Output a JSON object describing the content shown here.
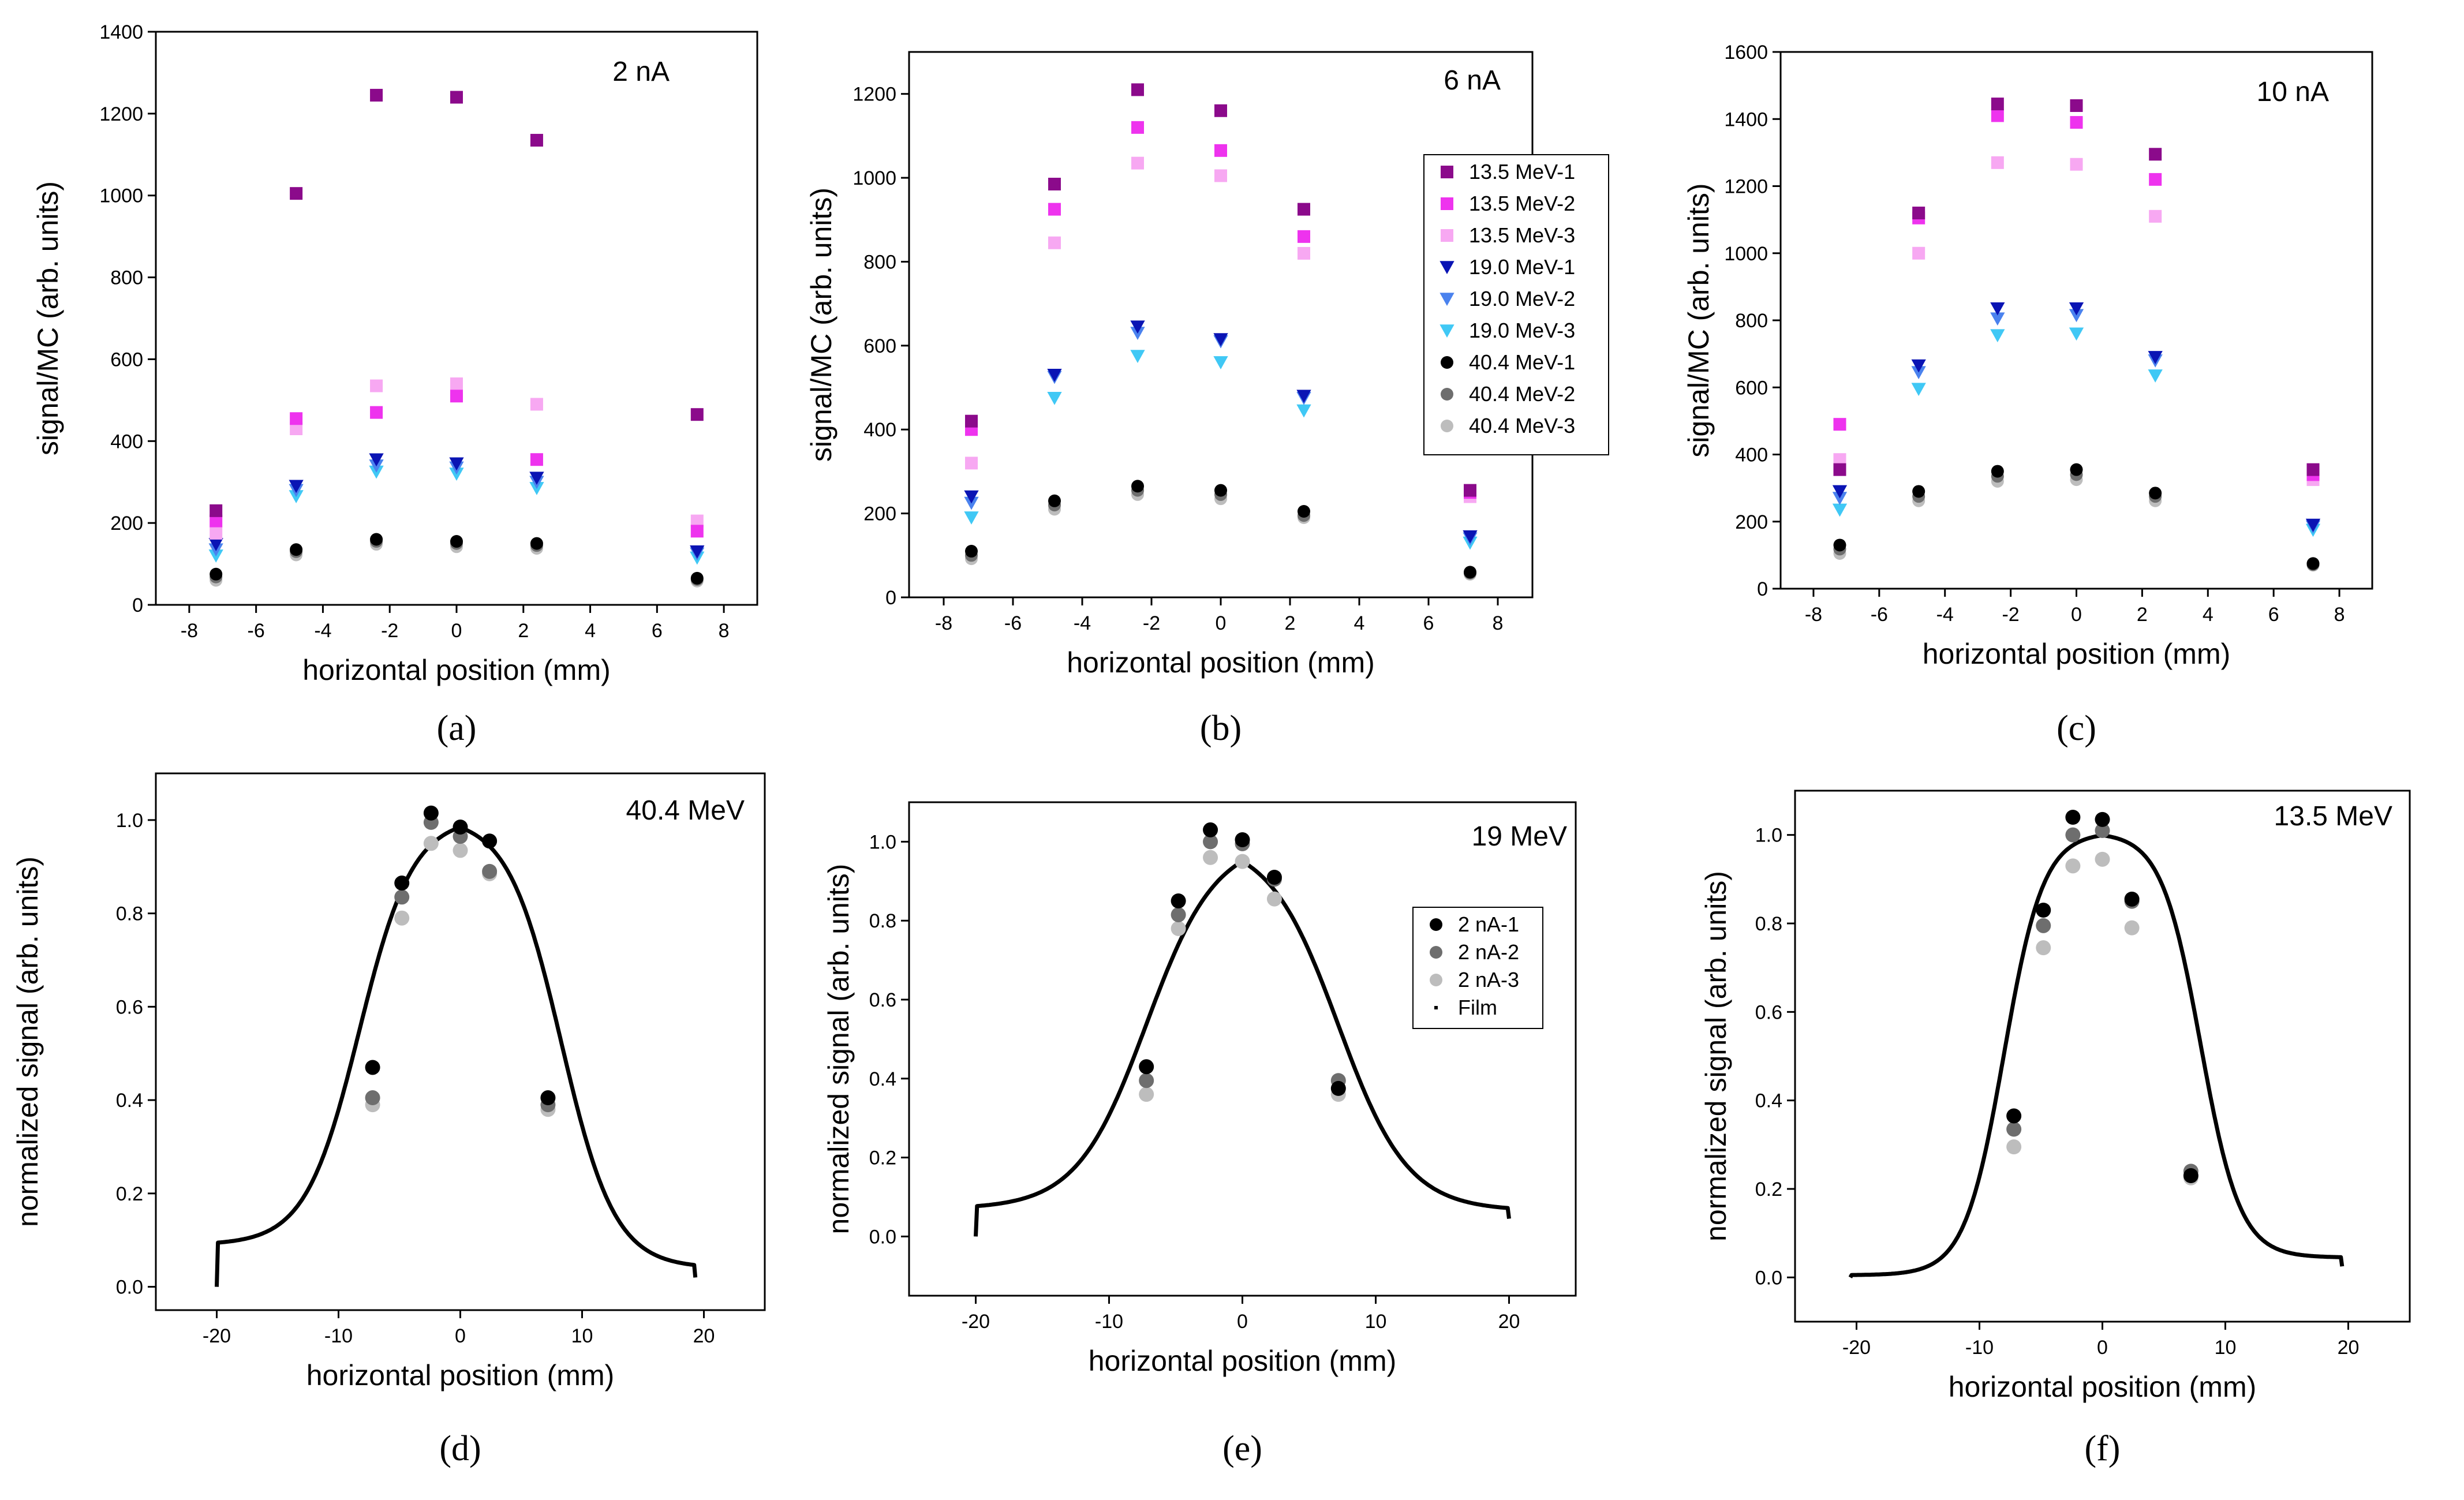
{
  "colors": {
    "13.5 MeV-1": "#8b0a8b",
    "13.5 MeV-2": "#ee33ee",
    "13.5 MeV-3": "#f7a8f2",
    "19.0 MeV-1": "#0a14b4",
    "19.0 MeV-2": "#4a82ee",
    "19.0 MeV-3": "#40c8f5",
    "40.4 MeV-1": "#000000",
    "40.4 MeV-2": "#6e6e6e",
    "40.4 MeV-3": "#bdbdbd",
    "2 nA-1": "#000000",
    "2 nA-2": "#6e6e6e",
    "2 nA-3": "#bdbdbd",
    "Film": "#000000"
  },
  "chart_data": [
    {
      "type": "scatter",
      "panel_label": "(a)",
      "annotation": "2 nA",
      "xlabel": "horizontal position (mm)",
      "ylabel": "signal/MC (arb. units)",
      "xlim": [
        -9,
        9
      ],
      "ylim": [
        0,
        1400
      ],
      "xticks": [
        -8,
        -6,
        -4,
        -2,
        0,
        2,
        4,
        6,
        8
      ],
      "xtick_labels": [
        "-8",
        "-6",
        "-4",
        "-2",
        "0",
        "2",
        "4",
        "6",
        "8"
      ],
      "yticks": [
        0,
        200,
        400,
        600,
        800,
        1000,
        1200,
        1400
      ],
      "ytick_labels": [
        "0",
        "200",
        "400",
        "600",
        "800",
        "1000",
        "1200",
        "1400"
      ],
      "x": [
        -7.2,
        -4.8,
        -2.4,
        0,
        2.4,
        7.2
      ],
      "series": [
        {
          "name": "13.5 MeV-1",
          "marker": "square",
          "values": [
            230,
            1005,
            1245,
            1240,
            1135,
            465
          ]
        },
        {
          "name": "13.5 MeV-2",
          "marker": "square",
          "values": [
            205,
            455,
            470,
            510,
            355,
            180
          ]
        },
        {
          "name": "13.5 MeV-3",
          "marker": "square",
          "values": [
            175,
            430,
            535,
            540,
            490,
            205
          ]
        },
        {
          "name": "19.0 MeV-1",
          "marker": "triangle",
          "values": [
            148,
            290,
            355,
            345,
            310,
            130
          ]
        },
        {
          "name": "19.0 MeV-2",
          "marker": "triangle",
          "values": [
            135,
            280,
            340,
            335,
            300,
            125
          ]
        },
        {
          "name": "19.0 MeV-3",
          "marker": "triangle",
          "values": [
            120,
            265,
            325,
            320,
            285,
            115
          ]
        },
        {
          "name": "40.4 MeV-1",
          "marker": "circle",
          "values": [
            75,
            135,
            160,
            155,
            150,
            65
          ]
        },
        {
          "name": "40.4 MeV-2",
          "marker": "circle",
          "values": [
            68,
            130,
            155,
            150,
            145,
            62
          ]
        },
        {
          "name": "40.4 MeV-3",
          "marker": "circle",
          "values": [
            60,
            122,
            148,
            142,
            138,
            58
          ]
        }
      ]
    },
    {
      "type": "scatter",
      "panel_label": "(b)",
      "annotation": "6 nA",
      "xlabel": "horizontal position (mm)",
      "ylabel": "signal/MC (arb. units)",
      "xlim": [
        -9,
        9
      ],
      "ylim": [
        0,
        1300
      ],
      "xticks": [
        -8,
        -6,
        -4,
        -2,
        0,
        2,
        4,
        6,
        8
      ],
      "xtick_labels": [
        "-8",
        "-6",
        "-4",
        "-2",
        "0",
        "2",
        "4",
        "6",
        "8"
      ],
      "yticks": [
        0,
        200,
        400,
        600,
        800,
        1000,
        1200
      ],
      "ytick_labels": [
        "0",
        "200",
        "400",
        "600",
        "800",
        "1000",
        "1200"
      ],
      "x": [
        -7.2,
        -4.8,
        -2.4,
        0,
        2.4,
        7.2
      ],
      "series": [
        {
          "name": "13.5 MeV-1",
          "marker": "square",
          "values": [
            420,
            985,
            1210,
            1160,
            925,
            255
          ]
        },
        {
          "name": "13.5 MeV-2",
          "marker": "square",
          "values": [
            400,
            925,
            1120,
            1065,
            860,
            250
          ]
        },
        {
          "name": "13.5 MeV-3",
          "marker": "square",
          "values": [
            320,
            845,
            1035,
            1005,
            820,
            240
          ]
        },
        {
          "name": "19.0 MeV-1",
          "marker": "triangle",
          "values": [
            240,
            530,
            645,
            615,
            480,
            145
          ]
        },
        {
          "name": "19.0 MeV-2",
          "marker": "triangle",
          "values": [
            225,
            525,
            630,
            610,
            475,
            140
          ]
        },
        {
          "name": "19.0 MeV-3",
          "marker": "triangle",
          "values": [
            190,
            475,
            575,
            560,
            445,
            130
          ]
        },
        {
          "name": "40.4 MeV-1",
          "marker": "circle",
          "values": [
            110,
            230,
            265,
            255,
            205,
            60
          ]
        },
        {
          "name": "40.4 MeV-2",
          "marker": "circle",
          "values": [
            100,
            220,
            255,
            245,
            195,
            58
          ]
        },
        {
          "name": "40.4 MeV-3",
          "marker": "circle",
          "values": [
            92,
            210,
            245,
            235,
            190,
            55
          ]
        }
      ],
      "legend": [
        "13.5 MeV-1",
        "13.5 MeV-2",
        "13.5 MeV-3",
        "19.0 MeV-1",
        "19.0 MeV-2",
        "19.0 MeV-3",
        "40.4 MeV-1",
        "40.4 MeV-2",
        "40.4 MeV-3"
      ],
      "legend_position": "right"
    },
    {
      "type": "scatter",
      "panel_label": "(c)",
      "annotation": "10 nA",
      "xlabel": "horizontal position (mm)",
      "ylabel": "signal/MC (arb. units)",
      "xlim": [
        -9,
        9
      ],
      "ylim": [
        0,
        1600
      ],
      "xticks": [
        -8,
        -6,
        -4,
        -2,
        0,
        2,
        4,
        6,
        8
      ],
      "xtick_labels": [
        "-8",
        "-6",
        "-4",
        "-2",
        "0",
        "2",
        "4",
        "6",
        "8"
      ],
      "yticks": [
        0,
        200,
        400,
        600,
        800,
        1000,
        1200,
        1400,
        1600
      ],
      "ytick_labels": [
        "0",
        "200",
        "400",
        "600",
        "800",
        "1000",
        "1200",
        "1400",
        "1600"
      ],
      "x": [
        -7.2,
        -4.8,
        -2.4,
        0,
        2.4,
        7.2
      ],
      "series": [
        {
          "name": "13.5 MeV-1",
          "marker": "square",
          "values": [
            355,
            1120,
            1445,
            1440,
            1295,
            355
          ]
        },
        {
          "name": "13.5 MeV-2",
          "marker": "square",
          "values": [
            490,
            1105,
            1410,
            1390,
            1220,
            340
          ]
        },
        {
          "name": "13.5 MeV-3",
          "marker": "square",
          "values": [
            385,
            1000,
            1270,
            1265,
            1110,
            325
          ]
        },
        {
          "name": "19.0 MeV-1",
          "marker": "triangle",
          "values": [
            290,
            665,
            835,
            835,
            690,
            190
          ]
        },
        {
          "name": "19.0 MeV-2",
          "marker": "triangle",
          "values": [
            270,
            645,
            805,
            815,
            680,
            185
          ]
        },
        {
          "name": "19.0 MeV-3",
          "marker": "triangle",
          "values": [
            235,
            595,
            755,
            760,
            635,
            175
          ]
        },
        {
          "name": "40.4 MeV-1",
          "marker": "circle",
          "values": [
            130,
            290,
            350,
            355,
            285,
            75
          ]
        },
        {
          "name": "40.4 MeV-2",
          "marker": "circle",
          "values": [
            118,
            275,
            335,
            340,
            275,
            72
          ]
        },
        {
          "name": "40.4 MeV-3",
          "marker": "circle",
          "values": [
            105,
            262,
            320,
            325,
            262,
            70
          ]
        }
      ]
    },
    {
      "type": "scatter",
      "panel_label": "(d)",
      "annotation": "40.4 MeV",
      "xlabel": "horizontal position (mm)",
      "ylabel": "normalized signal (arb. units)",
      "xlim": [
        -25,
        25
      ],
      "ylim": [
        -0.05,
        1.1
      ],
      "xticks": [
        -20,
        -10,
        0,
        10,
        20
      ],
      "xtick_labels": [
        "-20",
        "-10",
        "0",
        "10",
        "20"
      ],
      "yticks": [
        0,
        0.2,
        0.4,
        0.6,
        0.8,
        1.0
      ],
      "ytick_labels": [
        "0.0",
        "0.2",
        "0.4",
        "0.6",
        "0.8",
        "1.0"
      ],
      "x": [
        -7.2,
        -4.8,
        -2.4,
        0,
        2.4,
        7.2
      ],
      "series": [
        {
          "name": "2 nA-1",
          "marker": "circle",
          "values": [
            0.47,
            0.865,
            1.015,
            0.985,
            0.955,
            0.405
          ]
        },
        {
          "name": "2 nA-2",
          "marker": "circle",
          "values": [
            0.405,
            0.835,
            0.995,
            0.965,
            0.89,
            0.39
          ]
        },
        {
          "name": "2 nA-3",
          "marker": "circle",
          "values": [
            0.39,
            0.79,
            0.95,
            0.935,
            0.885,
            0.38
          ]
        }
      ],
      "film": {
        "plateau_left": 0.09,
        "plateau_right": 0.04,
        "width": 8.3,
        "edge": 2.2,
        "x_start": -20,
        "x_end": 19.3
      }
    },
    {
      "type": "scatter",
      "panel_label": "(e)",
      "annotation": "19 MeV",
      "xlabel": "horizontal position (mm)",
      "ylabel": "normalized signal (arb. units)",
      "xlim": [
        -25,
        25
      ],
      "ylim": [
        -0.15,
        1.1
      ],
      "xticks": [
        -20,
        -10,
        0,
        10,
        20
      ],
      "xtick_labels": [
        "-20",
        "-10",
        "0",
        "10",
        "20"
      ],
      "yticks": [
        0,
        0.2,
        0.4,
        0.6,
        0.8,
        1.0
      ],
      "ytick_labels": [
        "0.0",
        "0.2",
        "0.4",
        "0.6",
        "0.8",
        "1.0"
      ],
      "x": [
        -7.2,
        -4.8,
        -2.4,
        0,
        2.4,
        7.2
      ],
      "series": [
        {
          "name": "2 nA-1",
          "marker": "circle",
          "values": [
            0.43,
            0.85,
            1.03,
            1.005,
            0.91,
            0.375
          ]
        },
        {
          "name": "2 nA-2",
          "marker": "circle",
          "values": [
            0.395,
            0.815,
            1.0,
            0.995,
            0.905,
            0.395
          ]
        },
        {
          "name": "2 nA-3",
          "marker": "circle",
          "values": [
            0.36,
            0.78,
            0.96,
            0.95,
            0.855,
            0.36
          ]
        }
      ],
      "film": {
        "plateau_left": 0.07,
        "plateau_right": 0.065,
        "width": 7.2,
        "edge": 2.6,
        "x_start": -20,
        "x_end": 20
      },
      "legend": [
        "2 nA-1",
        "2 nA-2",
        "2 nA-3",
        "Film"
      ],
      "legend_position": "right"
    },
    {
      "type": "scatter",
      "panel_label": "(f)",
      "annotation": "13.5 MeV",
      "xlabel": "horizontal position (mm)",
      "ylabel": "normalized signal (arb. units)",
      "xlim": [
        -25,
        25
      ],
      "ylim": [
        -0.1,
        1.1
      ],
      "xticks": [
        -20,
        -10,
        0,
        10,
        20
      ],
      "xtick_labels": [
        "-20",
        "-10",
        "0",
        "10",
        "20"
      ],
      "yticks": [
        0,
        0.2,
        0.4,
        0.6,
        0.8,
        1.0
      ],
      "ytick_labels": [
        "0.0",
        "0.2",
        "0.4",
        "0.6",
        "0.8",
        "1.0"
      ],
      "x": [
        -7.2,
        -4.8,
        -2.4,
        0,
        2.4,
        7.2
      ],
      "series": [
        {
          "name": "2 nA-1",
          "marker": "circle",
          "values": [
            0.365,
            0.83,
            1.04,
            1.035,
            0.855,
            0.23
          ]
        },
        {
          "name": "2 nA-2",
          "marker": "circle",
          "values": [
            0.335,
            0.795,
            1.0,
            1.01,
            0.85,
            0.24
          ]
        },
        {
          "name": "2 nA-3",
          "marker": "circle",
          "values": [
            0.295,
            0.745,
            0.93,
            0.945,
            0.79,
            0.225
          ]
        }
      ],
      "film": {
        "plateau_left": 0.005,
        "plateau_right": 0.045,
        "width": 8.0,
        "edge": 1.6,
        "x_start": -20.5,
        "x_end": 19.5
      }
    }
  ]
}
